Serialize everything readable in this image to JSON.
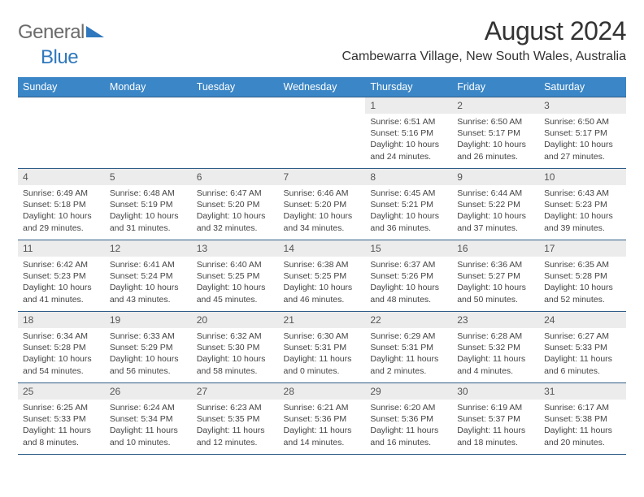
{
  "brand": {
    "name1": "General",
    "name2": "Blue"
  },
  "title": "August 2024",
  "location": "Cambewarra Village, New South Wales, Australia",
  "colors": {
    "headerBg": "#3b86c6",
    "headerText": "#ffffff",
    "rowDivider": "#2f5d87",
    "dayBg": "#ececec",
    "brandGray": "#6b6b6b",
    "brandBlue": "#2f78bd"
  },
  "dayHeaders": [
    "Sunday",
    "Monday",
    "Tuesday",
    "Wednesday",
    "Thursday",
    "Friday",
    "Saturday"
  ],
  "weeks": [
    [
      {
        "n": "",
        "sr": "",
        "ss": "",
        "dl": ""
      },
      {
        "n": "",
        "sr": "",
        "ss": "",
        "dl": ""
      },
      {
        "n": "",
        "sr": "",
        "ss": "",
        "dl": ""
      },
      {
        "n": "",
        "sr": "",
        "ss": "",
        "dl": ""
      },
      {
        "n": "1",
        "sr": "6:51 AM",
        "ss": "5:16 PM",
        "dl": "10 hours and 24 minutes."
      },
      {
        "n": "2",
        "sr": "6:50 AM",
        "ss": "5:17 PM",
        "dl": "10 hours and 26 minutes."
      },
      {
        "n": "3",
        "sr": "6:50 AM",
        "ss": "5:17 PM",
        "dl": "10 hours and 27 minutes."
      }
    ],
    [
      {
        "n": "4",
        "sr": "6:49 AM",
        "ss": "5:18 PM",
        "dl": "10 hours and 29 minutes."
      },
      {
        "n": "5",
        "sr": "6:48 AM",
        "ss": "5:19 PM",
        "dl": "10 hours and 31 minutes."
      },
      {
        "n": "6",
        "sr": "6:47 AM",
        "ss": "5:20 PM",
        "dl": "10 hours and 32 minutes."
      },
      {
        "n": "7",
        "sr": "6:46 AM",
        "ss": "5:20 PM",
        "dl": "10 hours and 34 minutes."
      },
      {
        "n": "8",
        "sr": "6:45 AM",
        "ss": "5:21 PM",
        "dl": "10 hours and 36 minutes."
      },
      {
        "n": "9",
        "sr": "6:44 AM",
        "ss": "5:22 PM",
        "dl": "10 hours and 37 minutes."
      },
      {
        "n": "10",
        "sr": "6:43 AM",
        "ss": "5:23 PM",
        "dl": "10 hours and 39 minutes."
      }
    ],
    [
      {
        "n": "11",
        "sr": "6:42 AM",
        "ss": "5:23 PM",
        "dl": "10 hours and 41 minutes."
      },
      {
        "n": "12",
        "sr": "6:41 AM",
        "ss": "5:24 PM",
        "dl": "10 hours and 43 minutes."
      },
      {
        "n": "13",
        "sr": "6:40 AM",
        "ss": "5:25 PM",
        "dl": "10 hours and 45 minutes."
      },
      {
        "n": "14",
        "sr": "6:38 AM",
        "ss": "5:25 PM",
        "dl": "10 hours and 46 minutes."
      },
      {
        "n": "15",
        "sr": "6:37 AM",
        "ss": "5:26 PM",
        "dl": "10 hours and 48 minutes."
      },
      {
        "n": "16",
        "sr": "6:36 AM",
        "ss": "5:27 PM",
        "dl": "10 hours and 50 minutes."
      },
      {
        "n": "17",
        "sr": "6:35 AM",
        "ss": "5:28 PM",
        "dl": "10 hours and 52 minutes."
      }
    ],
    [
      {
        "n": "18",
        "sr": "6:34 AM",
        "ss": "5:28 PM",
        "dl": "10 hours and 54 minutes."
      },
      {
        "n": "19",
        "sr": "6:33 AM",
        "ss": "5:29 PM",
        "dl": "10 hours and 56 minutes."
      },
      {
        "n": "20",
        "sr": "6:32 AM",
        "ss": "5:30 PM",
        "dl": "10 hours and 58 minutes."
      },
      {
        "n": "21",
        "sr": "6:30 AM",
        "ss": "5:31 PM",
        "dl": "11 hours and 0 minutes."
      },
      {
        "n": "22",
        "sr": "6:29 AM",
        "ss": "5:31 PM",
        "dl": "11 hours and 2 minutes."
      },
      {
        "n": "23",
        "sr": "6:28 AM",
        "ss": "5:32 PM",
        "dl": "11 hours and 4 minutes."
      },
      {
        "n": "24",
        "sr": "6:27 AM",
        "ss": "5:33 PM",
        "dl": "11 hours and 6 minutes."
      }
    ],
    [
      {
        "n": "25",
        "sr": "6:25 AM",
        "ss": "5:33 PM",
        "dl": "11 hours and 8 minutes."
      },
      {
        "n": "26",
        "sr": "6:24 AM",
        "ss": "5:34 PM",
        "dl": "11 hours and 10 minutes."
      },
      {
        "n": "27",
        "sr": "6:23 AM",
        "ss": "5:35 PM",
        "dl": "11 hours and 12 minutes."
      },
      {
        "n": "28",
        "sr": "6:21 AM",
        "ss": "5:36 PM",
        "dl": "11 hours and 14 minutes."
      },
      {
        "n": "29",
        "sr": "6:20 AM",
        "ss": "5:36 PM",
        "dl": "11 hours and 16 minutes."
      },
      {
        "n": "30",
        "sr": "6:19 AM",
        "ss": "5:37 PM",
        "dl": "11 hours and 18 minutes."
      },
      {
        "n": "31",
        "sr": "6:17 AM",
        "ss": "5:38 PM",
        "dl": "11 hours and 20 minutes."
      }
    ]
  ],
  "labels": {
    "sunrise": "Sunrise:",
    "sunset": "Sunset:",
    "daylight": "Daylight:"
  }
}
